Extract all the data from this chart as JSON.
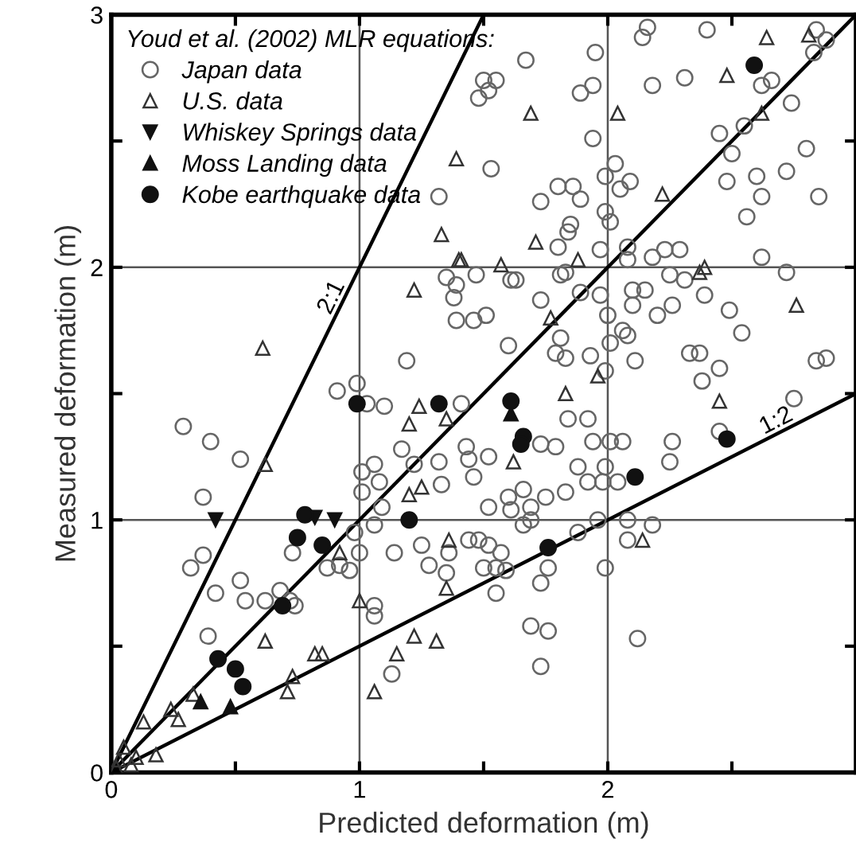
{
  "chart_data": {
    "type": "scatter",
    "xlabel": "Predicted deformation (m)",
    "ylabel": "Measured deformation (m)",
    "legend_title": "Youd et al. (2002) MLR equations:",
    "xlim": [
      0,
      3
    ],
    "ylim": [
      0,
      3
    ],
    "xticks": [
      0,
      {
        "value": 0.5,
        "label": null
      },
      1,
      {
        "value": 1.5,
        "label": null
      },
      2,
      {
        "value": 2.5,
        "label": null
      }
    ],
    "yticks": [
      0,
      {
        "value": 0.5,
        "label": null
      },
      1,
      {
        "value": 1.5,
        "label": null
      },
      2,
      {
        "value": 2.5,
        "label": null
      },
      3
    ],
    "grid": true,
    "legend": "top left",
    "series": [
      {
        "name": "Japan data",
        "color": "#666666",
        "marker": "circle",
        "x": [
          2.16,
          2.14,
          2.4,
          2.84,
          2.88,
          2.83,
          1.95,
          1.67,
          2.31,
          2.18,
          1.5,
          1.55,
          1.52,
          1.48,
          1.89,
          1.94,
          2.62,
          2.66,
          2.74,
          1.94,
          2.45,
          2.55,
          2.5,
          2.8,
          1.53,
          2.03,
          1.99,
          2.09,
          1.8,
          1.86,
          1.73,
          1.89,
          2.05,
          2.48,
          2.6,
          2.62,
          2.72,
          2.85,
          2.56,
          1.99,
          2.01,
          1.85,
          1.84,
          1.8,
          1.97,
          2.08,
          2.08,
          2.18,
          2.23,
          2.29,
          2.62,
          1.47,
          1.61,
          1.63,
          1.81,
          1.83,
          2.25,
          2.31,
          2.72,
          2.1,
          2.15,
          1.73,
          1.97,
          2.1,
          2.26,
          2.39,
          2.49,
          2.2,
          1.46,
          1.51,
          1.89,
          2.0,
          2.54,
          1.81,
          2.06,
          2.08,
          2.33,
          2.37,
          2.84,
          2.88,
          2.11,
          2.45,
          2.38,
          1.6,
          1.79,
          1.83,
          1.93,
          2.01,
          1.99,
          1.32,
          1.35,
          1.39,
          1.38,
          1.39,
          1.19,
          0.99,
          0.91,
          0.29,
          0.4,
          0.52,
          0.37,
          1.03,
          1.1,
          1.17,
          1.06,
          1.01,
          1.08,
          1.01,
          1.09,
          1.22,
          1.33,
          1.06,
          0.98,
          1.0,
          1.14,
          1.25,
          1.36,
          1.28,
          1.35,
          0.73,
          0.87,
          0.92,
          0.96,
          0.37,
          0.32,
          0.42,
          0.52,
          0.54,
          0.62,
          0.68,
          0.72,
          0.74,
          0.39,
          1.06,
          1.06,
          1.13,
          1.41,
          1.32,
          2.75,
          2.45,
          2.26,
          2.25,
          1.99,
          1.94,
          2.01,
          2.06,
          2.04,
          1.98,
          1.92,
          1.83,
          1.88,
          1.75,
          1.66,
          1.6,
          1.61,
          1.52,
          1.69,
          1.66,
          1.69,
          1.88,
          1.96,
          2.08,
          2.18,
          2.08,
          1.44,
          1.48,
          1.52,
          1.57,
          1.5,
          1.55,
          1.59,
          1.76,
          1.73,
          1.55,
          1.99,
          1.69,
          1.76,
          2.12,
          1.73,
          1.43,
          1.44,
          1.46,
          1.52,
          1.73,
          1.79,
          1.84,
          1.92
        ],
        "values": [
          2.95,
          2.91,
          2.94,
          2.94,
          2.9,
          2.85,
          2.85,
          2.82,
          2.75,
          2.72,
          2.74,
          2.74,
          2.7,
          2.67,
          2.69,
          2.72,
          2.72,
          2.74,
          2.65,
          2.51,
          2.53,
          2.56,
          2.45,
          2.47,
          2.39,
          2.41,
          2.36,
          2.34,
          2.32,
          2.32,
          2.26,
          2.27,
          2.31,
          2.34,
          2.36,
          2.28,
          2.38,
          2.28,
          2.2,
          2.22,
          2.18,
          2.17,
          2.14,
          2.08,
          2.07,
          2.08,
          2.03,
          2.04,
          2.07,
          2.07,
          2.04,
          1.97,
          1.95,
          1.95,
          1.97,
          1.98,
          1.97,
          1.95,
          1.98,
          1.91,
          1.91,
          1.87,
          1.89,
          1.85,
          1.85,
          1.89,
          1.83,
          1.81,
          1.79,
          1.81,
          1.9,
          1.81,
          1.74,
          1.72,
          1.75,
          1.73,
          1.66,
          1.66,
          1.63,
          1.64,
          1.63,
          1.6,
          1.55,
          1.69,
          1.66,
          1.64,
          1.65,
          1.7,
          1.59,
          2.28,
          1.96,
          1.93,
          1.88,
          1.79,
          1.63,
          1.54,
          1.51,
          1.37,
          1.31,
          1.24,
          1.09,
          1.46,
          1.45,
          1.28,
          1.22,
          1.19,
          1.15,
          1.11,
          1.05,
          1.22,
          1.14,
          0.98,
          0.95,
          0.87,
          0.87,
          0.9,
          0.87,
          0.82,
          0.79,
          0.87,
          0.81,
          0.82,
          0.8,
          0.86,
          0.81,
          0.71,
          0.76,
          0.68,
          0.68,
          0.72,
          0.68,
          0.66,
          0.54,
          0.66,
          0.62,
          0.39,
          1.46,
          1.23,
          1.48,
          1.35,
          1.31,
          1.23,
          1.21,
          1.31,
          1.31,
          1.31,
          1.15,
          1.15,
          1.15,
          1.11,
          1.21,
          1.09,
          1.12,
          1.09,
          1.04,
          1.05,
          1.05,
          0.98,
          1.0,
          0.95,
          1.0,
          1.0,
          0.98,
          0.92,
          0.92,
          0.92,
          0.9,
          0.87,
          0.81,
          0.81,
          0.8,
          0.81,
          0.75,
          0.71,
          0.81,
          0.58,
          0.56,
          0.53,
          0.42,
          1.29,
          1.24,
          1.17,
          1.25,
          1.3,
          1.29,
          1.4,
          1.4
        ]
      },
      {
        "name": "U.S. data",
        "color": "#333333",
        "marker": "triangle",
        "x": [
          0.61,
          1.33,
          1.4,
          1.22,
          1.39,
          2.64,
          2.48,
          1.69,
          2.04,
          2.22,
          1.71,
          1.88,
          1.57,
          1.41,
          2.39,
          2.37,
          2.76,
          1.77,
          2.62,
          1.96,
          1.24,
          1.2,
          1.35,
          1.2,
          1.25,
          0.62,
          0.92,
          1.36,
          1.35,
          1.0,
          0.62,
          0.82,
          0.85,
          1.22,
          1.31,
          1.15,
          0.73,
          0.71,
          1.06,
          0.13,
          0.24,
          0.27,
          0.33,
          0.18,
          1.83,
          2.45,
          1.62,
          2.14,
          2.81,
          0.03,
          0.05,
          0.08,
          0.02,
          0.1
        ],
        "values": [
          1.68,
          2.13,
          2.03,
          1.91,
          2.43,
          2.91,
          2.76,
          2.61,
          2.61,
          2.29,
          2.1,
          2.03,
          2.01,
          2.03,
          2.0,
          1.98,
          1.85,
          1.8,
          2.61,
          1.57,
          1.45,
          1.38,
          1.4,
          1.1,
          1.13,
          1.22,
          0.87,
          0.92,
          0.73,
          0.68,
          0.52,
          0.47,
          0.47,
          0.54,
          0.52,
          0.47,
          0.38,
          0.32,
          0.32,
          0.2,
          0.25,
          0.21,
          0.31,
          0.07,
          1.5,
          1.47,
          1.23,
          0.92,
          2.92,
          0.05,
          0.1,
          0.03,
          0.02,
          0.06
        ]
      },
      {
        "name": "Whiskey Springs data",
        "color": "#111111",
        "marker": "triangle_down",
        "x": [
          0.42,
          0.82,
          0.9
        ],
        "values": [
          1.0,
          1.01,
          1.0
        ]
      },
      {
        "name": "Moss Landing data",
        "color": "#111111",
        "marker": "triangle",
        "x": [
          0.36,
          0.48,
          1.61
        ],
        "values": [
          0.28,
          0.26,
          1.42
        ]
      },
      {
        "name": "Kobe earthquake data",
        "color": "#111111",
        "marker": "circle",
        "x": [
          0.99,
          1.32,
          0.78,
          0.75,
          0.85,
          1.2,
          0.69,
          0.43,
          0.5,
          0.53,
          1.61,
          1.66,
          1.65,
          2.11,
          2.48,
          1.76,
          2.59
        ],
        "values": [
          1.46,
          1.46,
          1.02,
          0.93,
          0.9,
          1.0,
          0.66,
          0.45,
          0.41,
          0.34,
          1.47,
          1.33,
          1.3,
          1.17,
          1.32,
          0.89,
          2.8
        ]
      },
      {
        "type": "line",
        "name": "2:1",
        "color": "#000000",
        "x": [
          0,
          1.5
        ],
        "values": [
          0,
          3
        ]
      },
      {
        "type": "line",
        "color": "#000000",
        "x": [
          0,
          3
        ],
        "values": [
          0,
          3
        ]
      },
      {
        "type": "line",
        "name": "1:2",
        "color": "#000000",
        "x": [
          0,
          3
        ],
        "values": [
          0,
          1.5
        ]
      }
    ]
  }
}
